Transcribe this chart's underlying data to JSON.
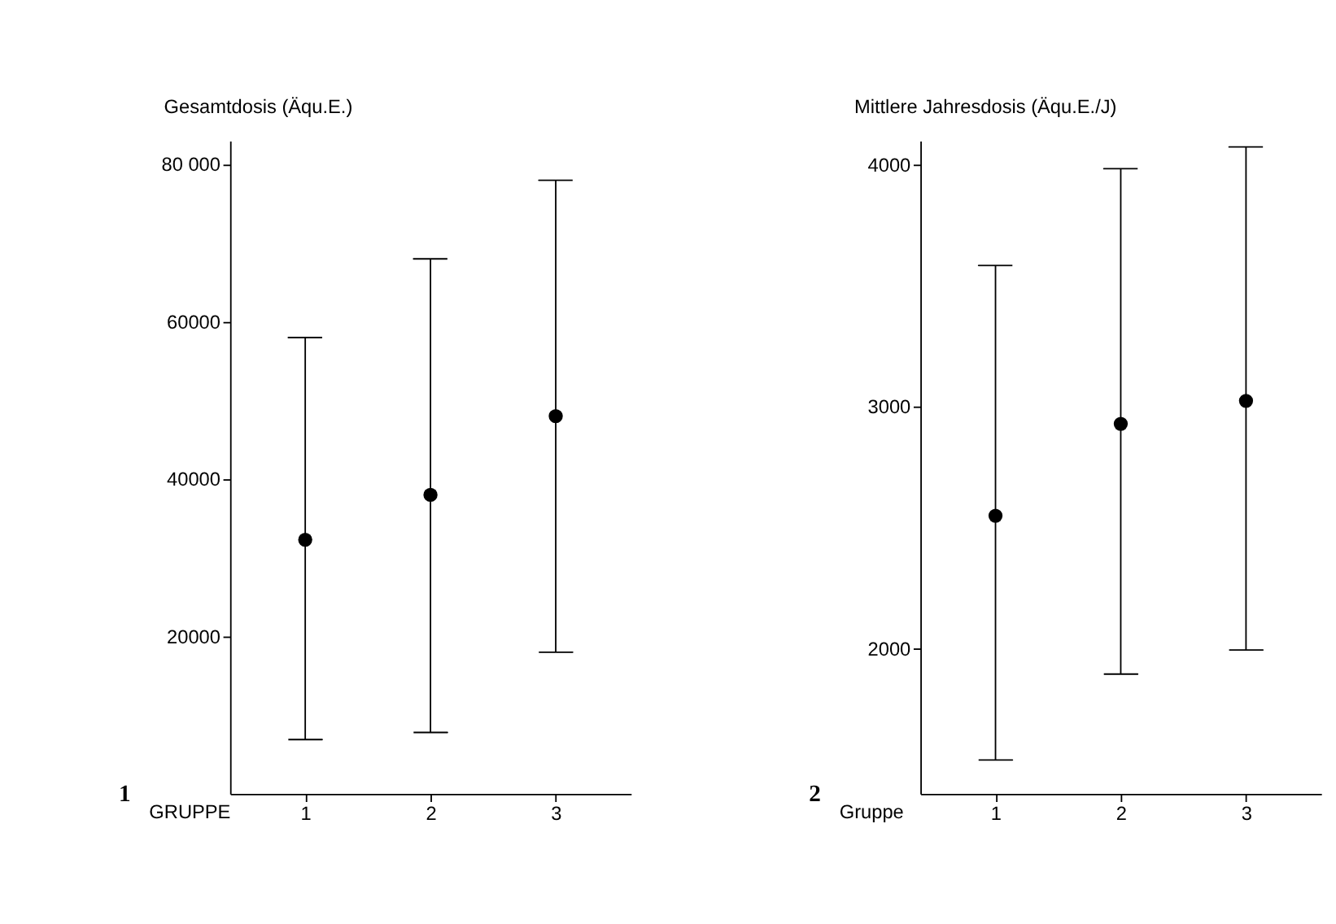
{
  "chart_data": [
    {
      "type": "scatter",
      "categories": [
        "1",
        "2",
        "3"
      ],
      "xlabel": "GRUPPE",
      "ylabel": "Gesamtdosis (Äqu.E.)",
      "series": [
        {
          "color": "#000000",
          "values": [
            32300,
            38000,
            48000
          ],
          "errors": [
            [
              6900,
              58000
            ],
            [
              7800,
              68000
            ],
            [
              18000,
              78000
            ]
          ]
        }
      ],
      "ylim": [
        0,
        83000
      ],
      "yticks": [
        {
          "value": 20000,
          "label": "20000"
        },
        {
          "value": 40000,
          "label": "40000"
        },
        {
          "value": 60000,
          "label": "60000"
        },
        {
          "value": 80000,
          "label": "80 000"
        }
      ],
      "grid": false,
      "legend": false,
      "marker": "circle",
      "annotations": [
        "1"
      ]
    },
    {
      "type": "scatter",
      "categories": [
        "1",
        "2",
        "3"
      ],
      "xlabel": "Gruppe",
      "ylabel": "Mittlere Jahresdosis (Äqu.E./J)",
      "series": [
        {
          "color": "#000000",
          "values": [
            2550,
            2930,
            3025
          ],
          "errors": [
            [
              1540,
              3585
            ],
            [
              1895,
              3985
            ],
            [
              1995,
              4075
            ]
          ]
        }
      ],
      "ylim": [
        1400,
        4100
      ],
      "yticks": [
        2000,
        3000,
        4000
      ],
      "grid": false,
      "legend": false,
      "marker": "circle",
      "annotations": [
        "2"
      ]
    }
  ]
}
